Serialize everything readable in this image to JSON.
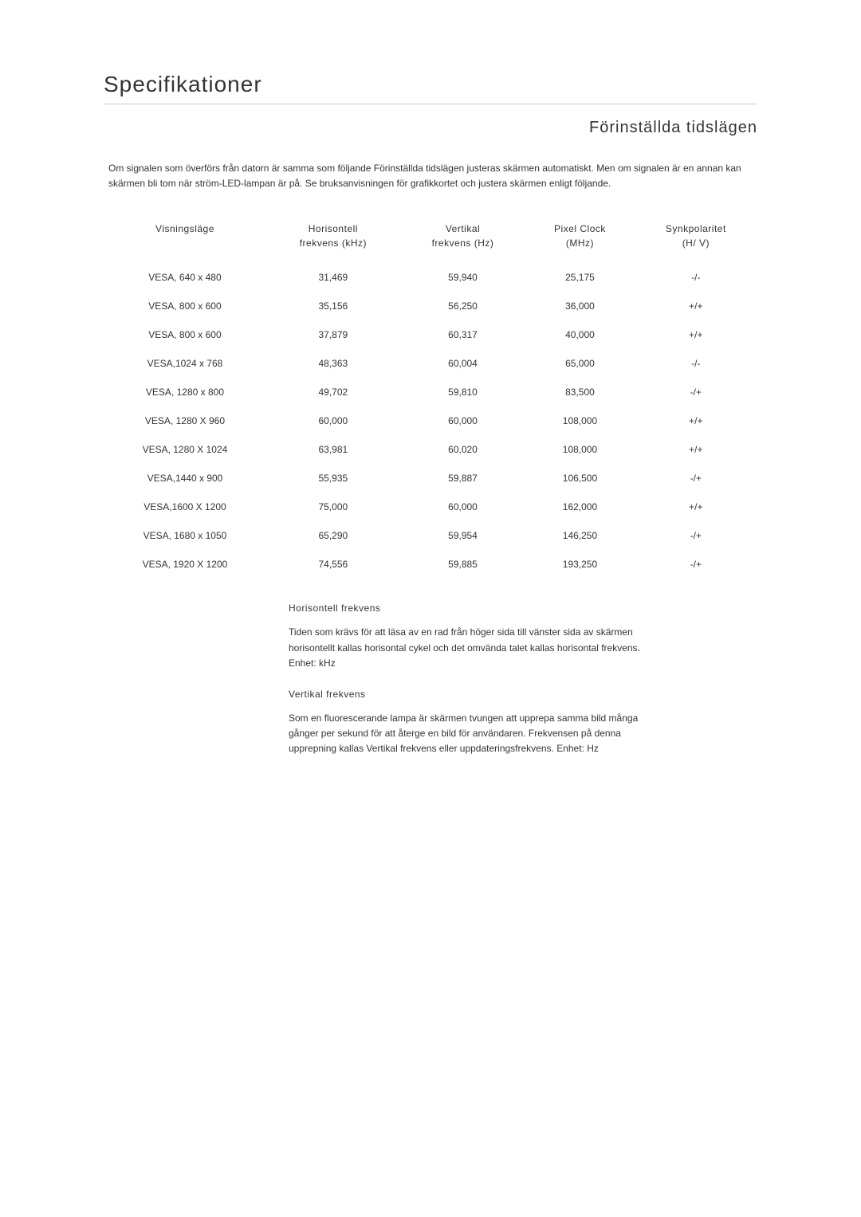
{
  "page_title": "Specifikationer",
  "section_title": "Förinställda tidslägen",
  "intro_text": "Om signalen som överförs från datorn är samma som följande Förinställda tidslägen justeras skärmen automatiskt. Men om signalen är en annan kan skärmen bli tom när ström-LED-lampan är på. Se bruksanvisningen för grafikkortet och justera skärmen enligt följande.",
  "table": {
    "columns": [
      "Visningsläge",
      "Horisontell frekvens (kHz)",
      "Vertikal frekvens (Hz)",
      "Pixel Clock (MHz)",
      "Synkpolaritet (H/ V)"
    ],
    "column_lines": [
      [
        "Visningsläge"
      ],
      [
        "Horisontell",
        "frekvens (kHz)"
      ],
      [
        "Vertikal",
        "frekvens (Hz)"
      ],
      [
        "Pixel Clock",
        "(MHz)"
      ],
      [
        "Synkpolaritet",
        "(H/ V)"
      ]
    ],
    "rows": [
      [
        "VESA, 640 x 480",
        "31,469",
        "59,940",
        "25,175",
        "-/-"
      ],
      [
        "VESA, 800 x 600",
        "35,156",
        "56,250",
        "36,000",
        "+/+"
      ],
      [
        "VESA, 800 x 600",
        "37,879",
        "60,317",
        "40,000",
        "+/+"
      ],
      [
        "VESA,1024 x 768",
        "48,363",
        "60,004",
        "65,000",
        "-/-"
      ],
      [
        "VESA, 1280 x 800",
        "49,702",
        "59,810",
        "83,500",
        "-/+"
      ],
      [
        "VESA, 1280 X 960",
        "60,000",
        "60,000",
        "108,000",
        "+/+"
      ],
      [
        "VESA, 1280 X 1024",
        "63,981",
        "60,020",
        "108,000",
        "+/+"
      ],
      [
        "VESA,1440 x 900",
        "55,935",
        "59,887",
        "106,500",
        "-/+"
      ],
      [
        "VESA,1600 X 1200",
        "75,000",
        "60,000",
        "162,000",
        "+/+"
      ],
      [
        "VESA, 1680 x 1050",
        "65,290",
        "59,954",
        "146,250",
        "-/+"
      ],
      [
        "VESA, 1920 X 1200",
        "74,556",
        "59,885",
        "193,250",
        "-/+"
      ]
    ]
  },
  "definitions": [
    {
      "title": "Horisontell frekvens",
      "text": "Tiden som krävs för att läsa av en rad från höger sida till vänster sida av skärmen horisontellt kallas horisontal cykel och det omvända talet kallas horisontal frekvens. Enhet: kHz"
    },
    {
      "title": "Vertikal frekvens",
      "text": "Som en fluorescerande lampa är skärmen tvungen att upprepa samma bild många gånger per sekund för att återge en bild för användaren. Frekvensen på denna upprepning kallas Vertikal frekvens eller uppdateringsfrekvens. Enhet: Hz"
    }
  ],
  "colors": {
    "text": "#333333",
    "divider": "#cccccc",
    "background": "#ffffff"
  }
}
